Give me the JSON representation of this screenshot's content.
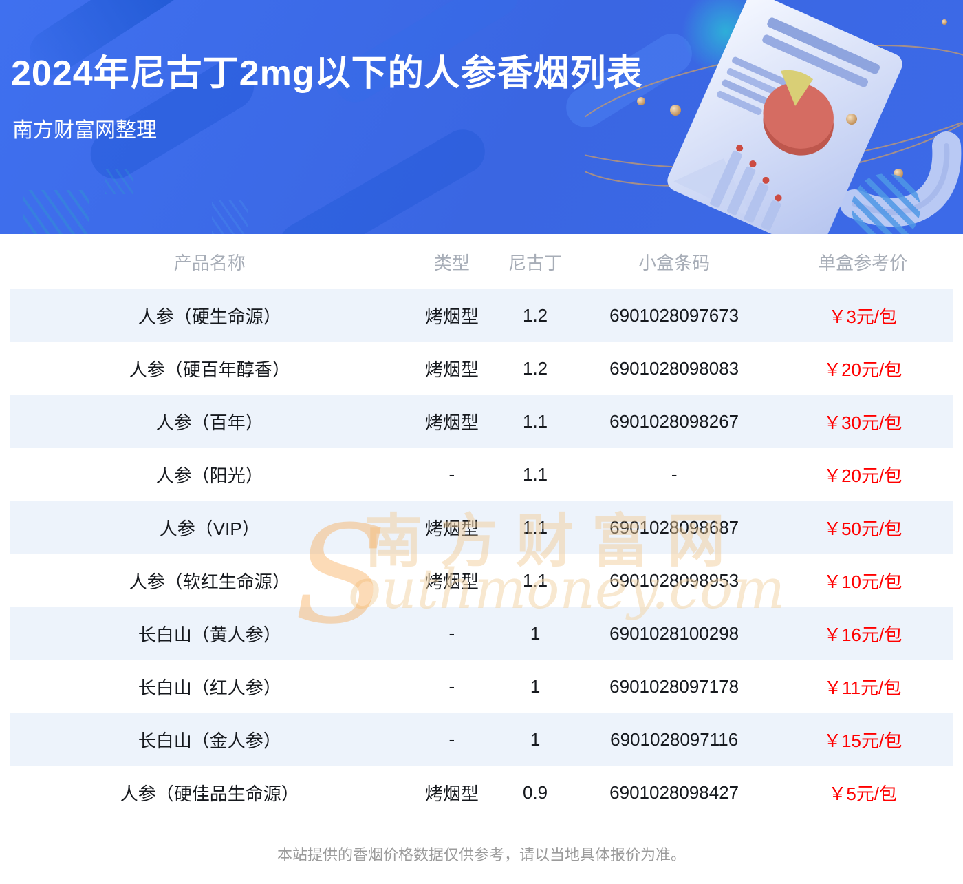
{
  "banner": {
    "title": "2024年尼古丁2mg以下的人参香烟列表",
    "subtitle": "南方财富网整理",
    "bg_color": "#3b68e6",
    "title_color": "#ffffff"
  },
  "icons": {
    "document_chart_illustration": "tilted report sheet with pie chart, bar chart and text lines",
    "pie_chart_icon": "red pie with yellow slice",
    "bar_chart_icon": "four blue bars with red dots",
    "orbit_icon": "two tan elliptical orbits with beads",
    "striped_circle_icon": "diagonal striped light-blue circle",
    "diagonal_lines_icon": "groups of short diagonal strokes"
  },
  "table": {
    "headers": [
      "产品名称",
      "类型",
      "尼古丁",
      "小盒条码",
      "单盒参考价"
    ],
    "rows": [
      {
        "name": "人参（硬生命源）",
        "type": "烤烟型",
        "nicotine": "1.2",
        "barcode": "6901028097673",
        "price": "￥3元/包"
      },
      {
        "name": "人参（硬百年醇香）",
        "type": "烤烟型",
        "nicotine": "1.2",
        "barcode": "6901028098083",
        "price": "￥20元/包"
      },
      {
        "name": "人参（百年）",
        "type": "烤烟型",
        "nicotine": "1.1",
        "barcode": "6901028098267",
        "price": "￥30元/包"
      },
      {
        "name": "人参（阳光）",
        "type": "-",
        "nicotine": "1.1",
        "barcode": "-",
        "price": "￥20元/包"
      },
      {
        "name": "人参（VIP）",
        "type": "烤烟型",
        "nicotine": "1.1",
        "barcode": "6901028098687",
        "price": "￥50元/包"
      },
      {
        "name": "人参（软红生命源）",
        "type": "烤烟型",
        "nicotine": "1.1",
        "barcode": "6901028098953",
        "price": "￥10元/包"
      },
      {
        "name": "长白山（黄人参）",
        "type": "-",
        "nicotine": "1",
        "barcode": "6901028100298",
        "price": "￥16元/包"
      },
      {
        "name": "长白山（红人参）",
        "type": "-",
        "nicotine": "1",
        "barcode": "6901028097178",
        "price": "￥11元/包"
      },
      {
        "name": "长白山（金人参）",
        "type": "-",
        "nicotine": "1",
        "barcode": "6901028097116",
        "price": "￥15元/包"
      },
      {
        "name": "人参（硬佳品生命源）",
        "type": "烤烟型",
        "nicotine": "0.9",
        "barcode": "6901028098427",
        "price": "￥5元/包"
      }
    ],
    "stripe_color": "#edf3fb",
    "price_color": "#ff0000",
    "header_text_color": "#a7adb7"
  },
  "watermark": {
    "initial": "S",
    "cn": "南方财富网",
    "en_rest": "outhmoney.com",
    "color": "#f1cb96"
  },
  "footer": {
    "disclaimer": "本站提供的香烟价格数据仅供参考，请以当地具体报价为准。"
  }
}
